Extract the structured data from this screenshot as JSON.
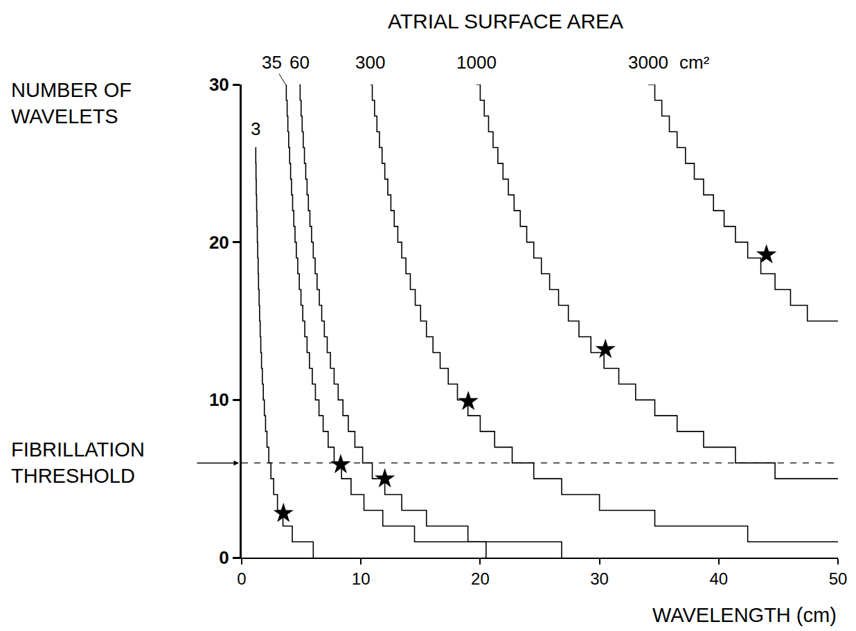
{
  "chart_data": {
    "type": "line",
    "title": "ATRIAL SURFACE AREA",
    "area_unit": "cm²",
    "x_label": "WAVELENGTH (cm)",
    "y_label": "NUMBER OF WAVELETS",
    "line_style": "step",
    "grid": false,
    "xlim": [
      0,
      50
    ],
    "ylim": [
      0,
      30
    ],
    "xticks": [
      0,
      10,
      20,
      30,
      40,
      50
    ],
    "yticks": [
      0,
      10,
      20,
      30
    ],
    "series": [
      {
        "name": "3",
        "color": "#000000",
        "x": [
          1.15,
          1.18,
          1.2,
          1.22,
          1.25,
          1.28,
          1.31,
          1.34,
          1.38,
          1.41,
          1.46,
          1.5,
          1.55,
          1.6,
          1.66,
          1.73,
          1.81,
          1.9,
          2.0,
          2.12,
          2.27,
          2.45,
          2.68,
          3.0,
          3.46,
          4.24,
          6.0
        ],
        "values": [
          26,
          25,
          24,
          23,
          22,
          21,
          20,
          19,
          18,
          17,
          16,
          15,
          14,
          13,
          12,
          11,
          10,
          9,
          8,
          7,
          6,
          5,
          4,
          3,
          2,
          1,
          0
        ]
      },
      {
        "name": "35",
        "color": "#000000",
        "x": [
          3.68,
          3.74,
          3.81,
          3.87,
          3.94,
          4.02,
          4.1,
          4.18,
          4.27,
          4.37,
          4.47,
          4.58,
          4.7,
          4.83,
          4.97,
          5.12,
          5.29,
          5.48,
          5.68,
          5.92,
          6.18,
          6.48,
          6.83,
          7.25,
          7.75,
          8.37,
          9.17,
          10.25,
          11.83,
          14.49,
          20.49
        ],
        "values": [
          30,
          29,
          28,
          27,
          26,
          25,
          24,
          23,
          22,
          21,
          20,
          19,
          18,
          17,
          16,
          15,
          14,
          13,
          12,
          11,
          10,
          9,
          8,
          7,
          6,
          5,
          4,
          3,
          2,
          1,
          0
        ]
      },
      {
        "name": "60",
        "color": "#000000",
        "x": [
          4.82,
          4.9,
          4.98,
          5.07,
          5.16,
          5.26,
          5.37,
          5.48,
          5.59,
          5.72,
          5.86,
          6.0,
          6.16,
          6.32,
          6.51,
          6.71,
          6.93,
          7.17,
          7.44,
          7.75,
          8.09,
          8.49,
          8.94,
          9.49,
          10.14,
          10.95,
          12.0,
          13.42,
          15.49,
          18.97,
          26.83
        ],
        "values": [
          30,
          29,
          28,
          27,
          26,
          25,
          24,
          23,
          22,
          21,
          20,
          19,
          18,
          17,
          16,
          15,
          14,
          13,
          12,
          11,
          10,
          9,
          8,
          7,
          6,
          5,
          4,
          3,
          2,
          1,
          0
        ]
      },
      {
        "name": "300",
        "color": "#000000",
        "x": [
          10.78,
          10.95,
          11.14,
          11.34,
          11.55,
          11.77,
          12.0,
          12.25,
          12.51,
          12.79,
          13.09,
          13.42,
          13.77,
          14.14,
          14.55,
          15.0,
          15.49,
          16.04,
          16.64,
          17.32,
          18.09,
          18.97,
          20.0,
          21.21,
          22.68,
          24.49,
          26.83,
          30.0,
          34.64,
          42.43,
          50
        ],
        "values": [
          30,
          29,
          28,
          27,
          26,
          25,
          24,
          23,
          22,
          21,
          20,
          19,
          18,
          17,
          16,
          15,
          14,
          13,
          12,
          11,
          10,
          9,
          8,
          7,
          6,
          5,
          4,
          3,
          2,
          1,
          1
        ]
      },
      {
        "name": "1000",
        "color": "#000000",
        "x": [
          19.67,
          20.0,
          20.34,
          20.7,
          21.08,
          21.48,
          21.91,
          22.36,
          22.84,
          23.36,
          23.9,
          24.49,
          25.13,
          25.82,
          26.57,
          27.39,
          28.28,
          29.28,
          30.38,
          31.62,
          33.03,
          34.64,
          36.51,
          38.73,
          41.4,
          44.72,
          50
        ],
        "values": [
          30,
          29,
          28,
          27,
          26,
          25,
          24,
          23,
          22,
          21,
          20,
          19,
          18,
          17,
          16,
          15,
          14,
          13,
          12,
          11,
          10,
          9,
          8,
          7,
          6,
          5,
          5
        ]
      },
      {
        "name": "3000",
        "color": "#000000",
        "x": [
          34.08,
          34.64,
          35.23,
          35.86,
          36.51,
          37.21,
          37.95,
          38.73,
          39.56,
          40.45,
          41.4,
          42.43,
          43.53,
          44.72,
          46.02,
          47.43,
          50
        ],
        "values": [
          30,
          29,
          28,
          27,
          26,
          25,
          24,
          23,
          22,
          21,
          20,
          19,
          18,
          17,
          16,
          15,
          15
        ]
      }
    ],
    "points": {
      "marker": "star",
      "color": "#000000",
      "x": [
        3.5,
        8.3,
        12.0,
        19.0,
        30.5,
        44.0
      ],
      "values": [
        2.8,
        5.9,
        5.0,
        9.9,
        13.2,
        19.2
      ]
    },
    "threshold": {
      "label": "FIBRILLATION THRESHOLD",
      "value": 6,
      "line_style": "dash"
    }
  }
}
